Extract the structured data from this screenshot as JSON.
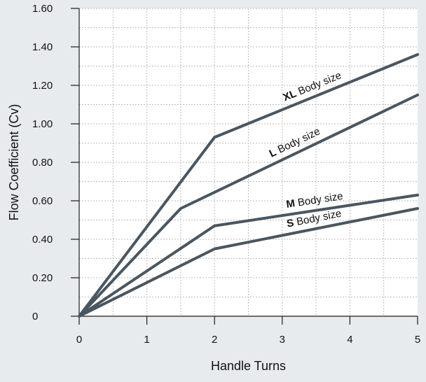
{
  "chart_data": {
    "type": "line",
    "title": "",
    "xlabel": "Handle Turns",
    "ylabel": "Flow Coefficient (Cv)",
    "xlim": [
      0,
      5
    ],
    "ylim": [
      0,
      1.6
    ],
    "x_ticks": [
      0,
      1,
      2,
      3,
      4,
      5
    ],
    "x_tick_labels": [
      "0",
      "1",
      "2",
      "3",
      "4",
      "5"
    ],
    "y_ticks": [
      0,
      0.2,
      0.4,
      0.6,
      0.8,
      1.0,
      1.2,
      1.4,
      1.6
    ],
    "y_tick_labels": [
      "0",
      "0.20",
      "0.40",
      "0.60",
      "0.80",
      "1.00",
      "1.20",
      "1.40",
      "1.60"
    ],
    "grid": true,
    "legend": "none",
    "series": [
      {
        "name": "XL Body size",
        "label_bold": "XL",
        "label_rest": " Body size",
        "points": [
          [
            0,
            0
          ],
          [
            2,
            0.93
          ],
          [
            5,
            1.36
          ]
        ]
      },
      {
        "name": "L Body size",
        "label_bold": "L",
        "label_rest": " Body size",
        "points": [
          [
            0,
            0
          ],
          [
            1.5,
            0.56
          ],
          [
            5,
            1.15
          ]
        ]
      },
      {
        "name": "M Body size",
        "label_bold": "M",
        "label_rest": " Body size",
        "points": [
          [
            0,
            0
          ],
          [
            2,
            0.47
          ],
          [
            5,
            0.63
          ]
        ]
      },
      {
        "name": "S Body size",
        "label_bold": "S",
        "label_rest": " Body size",
        "points": [
          [
            0,
            0
          ],
          [
            2,
            0.35
          ],
          [
            5,
            0.56
          ]
        ]
      }
    ],
    "colors": {
      "line": "#4a5660",
      "grid": "#b9bdc1",
      "axis": "#1a1a1a",
      "plot_background": "#ffffff",
      "page_background": "#e8ebee"
    }
  }
}
